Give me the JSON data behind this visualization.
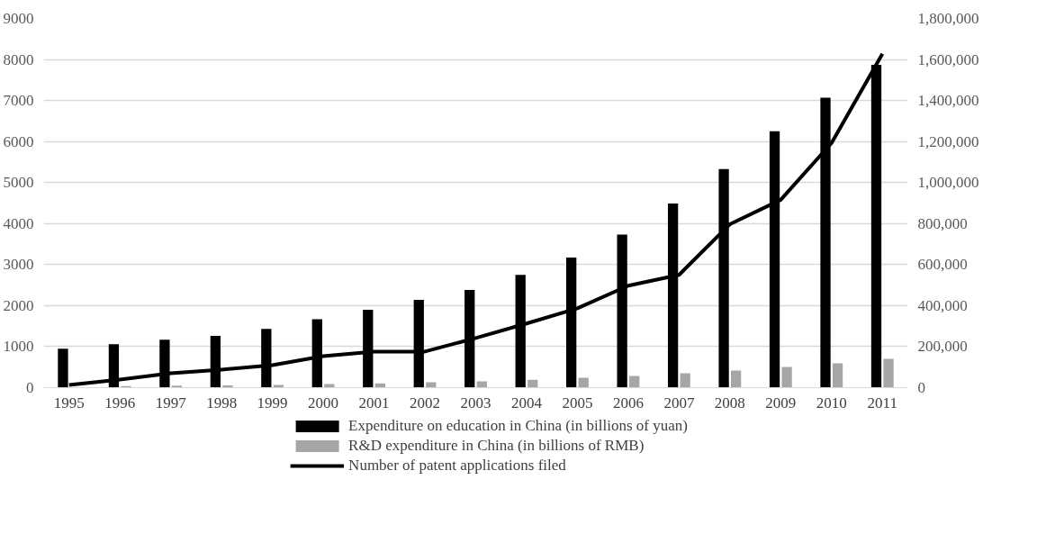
{
  "chart_data": {
    "type": "bar",
    "categories": [
      "1995",
      "1996",
      "1997",
      "1998",
      "1999",
      "2000",
      "2001",
      "2002",
      "2003",
      "2004",
      "2005",
      "2006",
      "2007",
      "2008",
      "2009",
      "2010",
      "2011"
    ],
    "series": [
      {
        "name": "Expenditure on education in China (in billions of yuan)",
        "color": "#000000",
        "values": [
          950,
          1060,
          1170,
          1260,
          1430,
          1670,
          1900,
          2140,
          2380,
          2750,
          3170,
          3730,
          4490,
          5330,
          6250,
          7070,
          7870
        ]
      },
      {
        "name": "R&D expenditure in China (in billions of RMB)",
        "color": "#a6a6a6",
        "values": [
          null,
          40,
          50,
          55,
          68,
          90,
          104,
          129,
          154,
          190,
          242,
          286,
          352,
          418,
          507,
          595,
          705
        ]
      },
      {
        "name": "Number of patent applications filed",
        "type": "line",
        "axis": "y2",
        "color": "#000000",
        "values": [
          13000,
          40000,
          70000,
          88000,
          110000,
          154000,
          176000,
          176000,
          242000,
          313000,
          387000,
          497000,
          550000,
          797000,
          916000,
          1193000,
          1628000
        ]
      }
    ],
    "ylim": [
      0,
      9000
    ],
    "yticks": [
      0,
      1000,
      2000,
      3000,
      4000,
      5000,
      6000,
      7000,
      8000,
      9000
    ],
    "y2lim": [
      0,
      1800000
    ],
    "y2ticks": [
      {
        "value": 0,
        "label": "0"
      },
      {
        "value": 200000,
        "label": "200,000"
      },
      {
        "value": 400000,
        "label": "400,000"
      },
      {
        "value": 600000,
        "label": "600,000"
      },
      {
        "value": 800000,
        "label": "800,000"
      },
      {
        "value": 1000000,
        "label": "1,000,000"
      },
      {
        "value": 1200000,
        "label": "1,200,000"
      },
      {
        "value": 1400000,
        "label": "1,400,000"
      },
      {
        "value": 1600000,
        "label": "1,600,000"
      },
      {
        "value": 1800000,
        "label": "1,800,000"
      }
    ],
    "grid": "y",
    "legend": "bottom"
  }
}
